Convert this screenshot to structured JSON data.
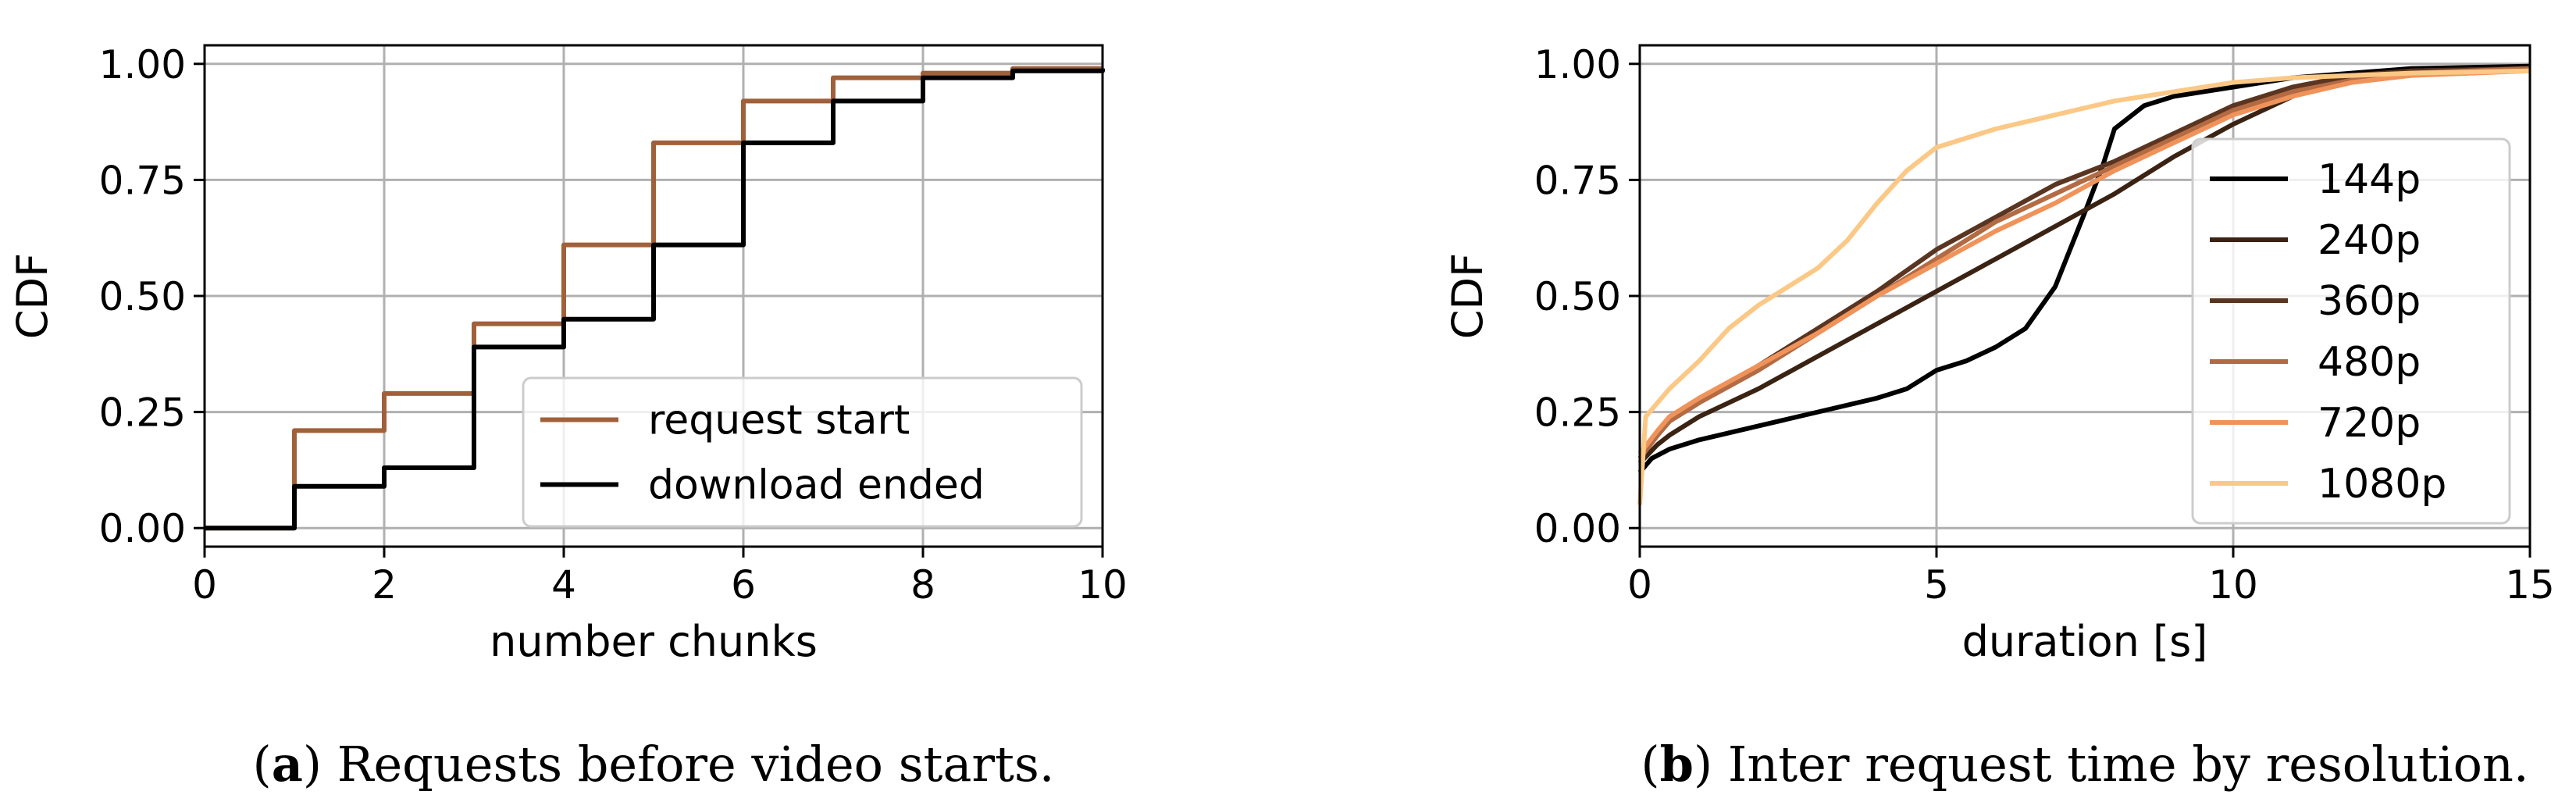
{
  "chart_data": [
    {
      "type": "line",
      "step": true,
      "caption_letter": "a",
      "caption_text": ") Requests before video starts.",
      "caption_open": "(",
      "xlabel": "number chunks",
      "ylabel": "CDF",
      "xlim": [
        0,
        10
      ],
      "ylim": [
        -0.04,
        1.04
      ],
      "xticks": [
        0,
        2,
        4,
        6,
        8,
        10
      ],
      "xtick_labels": [
        "0",
        "2",
        "4",
        "6",
        "8",
        "10"
      ],
      "yticks": [
        0,
        0.25,
        0.5,
        0.75,
        1.0
      ],
      "ytick_labels": [
        "0.00",
        "0.25",
        "0.50",
        "0.75",
        "1.00"
      ],
      "grid": true,
      "legend_position": "lower-right",
      "series": [
        {
          "name": "request start",
          "color": "#a0603a",
          "x": [
            0,
            1,
            2,
            3,
            4,
            5,
            6,
            7,
            8,
            9,
            10
          ],
          "y": [
            0.0,
            0.21,
            0.29,
            0.44,
            0.61,
            0.83,
            0.92,
            0.97,
            0.98,
            0.99,
            0.99
          ]
        },
        {
          "name": "download ended",
          "color": "#000000",
          "x": [
            0,
            1,
            2,
            3,
            4,
            5,
            6,
            7,
            8,
            9,
            10
          ],
          "y": [
            0.0,
            0.09,
            0.13,
            0.39,
            0.45,
            0.61,
            0.83,
            0.92,
            0.97,
            0.985,
            0.99
          ]
        }
      ]
    },
    {
      "type": "line",
      "caption_letter": "b",
      "caption_text": ") Inter request time by resolution.",
      "caption_open": "(",
      "xlabel": "duration [s]",
      "ylabel": "CDF",
      "xlim": [
        0,
        15
      ],
      "ylim": [
        -0.04,
        1.04
      ],
      "xticks": [
        0,
        5,
        10,
        15
      ],
      "xtick_labels": [
        "0",
        "5",
        "10",
        "15"
      ],
      "yticks": [
        0,
        0.25,
        0.5,
        0.75,
        1.0
      ],
      "ytick_labels": [
        "0.00",
        "0.25",
        "0.50",
        "0.75",
        "1.00"
      ],
      "grid": true,
      "legend_position": "lower-right",
      "series": [
        {
          "name": "144p",
          "color": "#000000",
          "x": [
            0,
            0.2,
            0.5,
            1,
            2,
            3,
            4,
            4.5,
            5,
            5.5,
            6,
            6.5,
            7,
            7.5,
            7.8,
            8,
            8.5,
            9,
            10,
            11,
            12,
            13,
            15
          ],
          "y": [
            0.12,
            0.15,
            0.17,
            0.19,
            0.22,
            0.25,
            0.28,
            0.3,
            0.34,
            0.36,
            0.39,
            0.43,
            0.52,
            0.68,
            0.78,
            0.86,
            0.91,
            0.93,
            0.95,
            0.97,
            0.98,
            0.99,
            0.995
          ]
        },
        {
          "name": "240p",
          "color": "#3b2314",
          "x": [
            0,
            0.3,
            0.5,
            1,
            2,
            3,
            4,
            5,
            6,
            7,
            8,
            9,
            10,
            11,
            12,
            13,
            15
          ],
          "y": [
            0.14,
            0.18,
            0.2,
            0.24,
            0.3,
            0.37,
            0.44,
            0.51,
            0.58,
            0.65,
            0.72,
            0.8,
            0.87,
            0.93,
            0.97,
            0.985,
            0.99
          ]
        },
        {
          "name": "360p",
          "color": "#5a3521",
          "x": [
            0,
            0.3,
            0.5,
            1,
            2,
            3,
            4,
            5,
            6,
            7,
            8,
            9,
            10,
            11,
            12,
            13,
            15
          ],
          "y": [
            0.15,
            0.2,
            0.23,
            0.27,
            0.35,
            0.43,
            0.51,
            0.6,
            0.67,
            0.74,
            0.79,
            0.85,
            0.91,
            0.95,
            0.975,
            0.985,
            0.99
          ]
        },
        {
          "name": "480p",
          "color": "#b36b43",
          "x": [
            0,
            0.3,
            0.5,
            1,
            2,
            3,
            4,
            5,
            6,
            7,
            8,
            9,
            10,
            11,
            12,
            13,
            15
          ],
          "y": [
            0.15,
            0.2,
            0.23,
            0.27,
            0.34,
            0.42,
            0.5,
            0.58,
            0.66,
            0.72,
            0.78,
            0.84,
            0.9,
            0.94,
            0.965,
            0.98,
            0.99
          ]
        },
        {
          "name": "720p",
          "color": "#f0935b",
          "x": [
            0,
            0.3,
            0.5,
            1,
            2,
            3,
            4,
            5,
            6,
            7,
            8,
            9,
            10,
            11,
            12,
            13,
            15
          ],
          "y": [
            0.16,
            0.21,
            0.24,
            0.28,
            0.35,
            0.42,
            0.5,
            0.57,
            0.64,
            0.7,
            0.77,
            0.83,
            0.89,
            0.93,
            0.96,
            0.975,
            0.985
          ]
        },
        {
          "name": "1080p",
          "color": "#fbc886",
          "x": [
            0,
            0.1,
            0.3,
            0.5,
            1,
            1.5,
            2,
            3,
            3.5,
            4,
            4.5,
            5,
            6,
            7,
            8,
            9,
            10,
            11,
            12,
            13,
            15
          ],
          "y": [
            0.05,
            0.24,
            0.27,
            0.3,
            0.36,
            0.43,
            0.48,
            0.56,
            0.62,
            0.7,
            0.77,
            0.82,
            0.86,
            0.89,
            0.92,
            0.94,
            0.96,
            0.97,
            0.975,
            0.98,
            0.985
          ]
        }
      ]
    }
  ]
}
